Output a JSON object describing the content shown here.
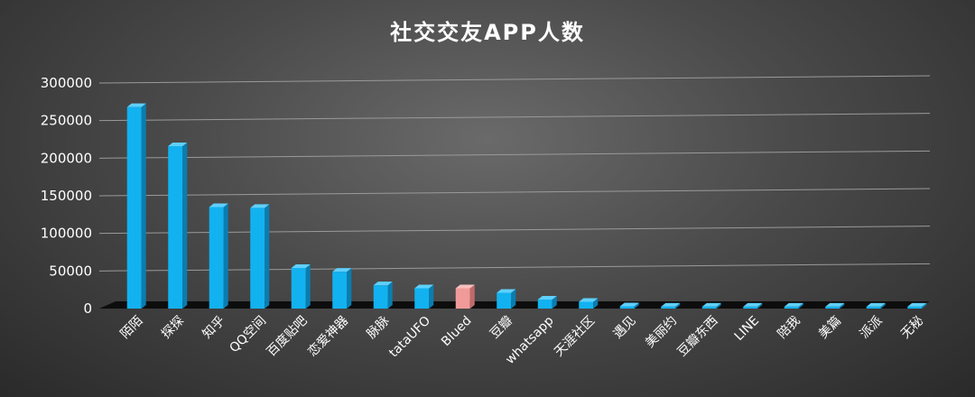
{
  "chart_data": {
    "type": "bar",
    "title": "社交交友APP人数",
    "xlabel": "",
    "ylabel": "",
    "ylim": [
      0,
      300000
    ],
    "yticks": [
      0,
      50000,
      100000,
      150000,
      200000,
      250000,
      300000
    ],
    "ytick_labels": [
      "0",
      "50000",
      "100000",
      "150000",
      "200000",
      "250000",
      "300000"
    ],
    "grid": true,
    "legend": "none",
    "categories": [
      "陌陌",
      "探探",
      "知乎",
      "QQ空间",
      "百度贴吧",
      "恋爱神器",
      "脉脉",
      "tataUFO",
      "Blued",
      "豆瓣",
      "whatsapp",
      "天涯社区",
      "遇见",
      "美丽约",
      "豆瓣东西",
      "LINE",
      "陪我",
      "美篇",
      "派派",
      "无秘"
    ],
    "values": [
      268000,
      216000,
      135000,
      134000,
      54000,
      49000,
      31000,
      27000,
      27000,
      21000,
      12000,
      9000,
      3000,
      2500,
      2500,
      2500,
      2500,
      2500,
      2500,
      2500
    ],
    "bar_color": "#12b2f0",
    "highlight_index": 8,
    "highlight_color": "#f09a9a"
  }
}
